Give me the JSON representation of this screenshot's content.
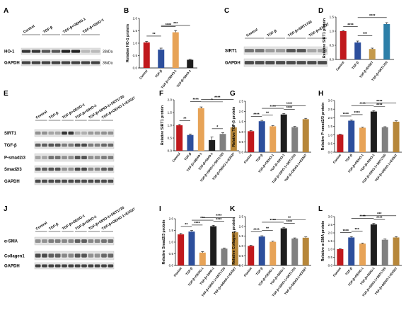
{
  "colors": {
    "Control": "#c0191d",
    "TGF-β": "#2d4f9c",
    "TGF-β+OEHO-1": "#e7a357",
    "TGF-β+SIHO-1": "#1e1e1e",
    "TGF-β+SIHO-1+SRT1720": "#808080",
    "TGF-β+OEHO-1+EX527": "#b7873a",
    "TGF-β+SRT1720": "#2d7fa8",
    "TGF-β+EX527": "#c49a4c"
  },
  "blots": {
    "A": {
      "label": "A",
      "columns": [
        "Control",
        "TGF-β",
        "TGF-β+OEHO-1",
        "TGF-β+SIHO-1"
      ],
      "rows": [
        {
          "name": "HO-1",
          "kda": "33kDa"
        },
        {
          "name": "GAPDH",
          "kda": "36kDa"
        }
      ]
    },
    "C": {
      "label": "C",
      "columns": [
        "Control",
        "TGF-β",
        "TGF-β+SRT1720",
        "TGF-β+EX527"
      ],
      "rows": [
        {
          "name": "SIRT1"
        },
        {
          "name": "GAPDH"
        }
      ]
    },
    "E": {
      "label": "E",
      "columns": [
        "Control",
        "TGF-β",
        "TGF-β+OEHO-1",
        "TGF-β+SIHO-1",
        "TGF-β+SIHO-1+SRT1720",
        "TGF-β+OEHO-1+EX527"
      ],
      "rows": [
        {
          "name": "SIRT1"
        },
        {
          "name": "TGF-β"
        },
        {
          "name": "P-smad2/3"
        },
        {
          "name": "Smad2/3"
        },
        {
          "name": "GAPDH"
        }
      ]
    },
    "J": {
      "label": "J",
      "columns": [
        "Control",
        "TGF-β",
        "TGF-β+OEHO-1",
        "TGF-β+SIHO-1",
        "TGF-β+SIHO-1+SRT1720",
        "TGF-β+OEHO-1+EX527"
      ],
      "rows": [
        {
          "name": "α-SMA"
        },
        {
          "name": "Collagen1"
        },
        {
          "name": "GAPDH"
        }
      ]
    }
  },
  "chart_data": [
    {
      "panel": "B",
      "type": "bar",
      "ylabel": "Relative HO-1 protein",
      "ylim": [
        0,
        2.0
      ],
      "yticks": [
        "0.0",
        "0.5",
        "1.0",
        "1.5",
        "2.0"
      ],
      "categories": [
        "Control",
        "TGF-β",
        "TGF-β+OEHO-1",
        "TGF-β+SIHO-1"
      ],
      "values": [
        1.03,
        0.74,
        1.44,
        0.33
      ],
      "errors": [
        0.04,
        0.06,
        0.07,
        0.02
      ],
      "sig": [
        {
          "from": 1,
          "to": 2,
          "label": "****"
        },
        {
          "from": 0,
          "to": 1,
          "label": "**"
        },
        {
          "from": 1,
          "to": 3,
          "label": "***"
        }
      ]
    },
    {
      "panel": "D",
      "type": "bar",
      "ylabel": "Relative SIRT1 protein",
      "ylim": [
        0,
        1.5
      ],
      "yticks": [
        "0.0",
        "0.5",
        "1.0",
        "1.5"
      ],
      "categories": [
        "Control",
        "TGF-β",
        "TGF-β+EX527",
        "TGF-β+SRT1720"
      ],
      "values": [
        1.0,
        0.6,
        0.37,
        1.25
      ],
      "errors": [
        0.02,
        0.05,
        0.03,
        0.05
      ],
      "sig": [
        {
          "from": 0,
          "to": 1,
          "label": "****"
        },
        {
          "from": 1,
          "to": 2,
          "label": "***"
        },
        {
          "from": 1,
          "to": 3,
          "label": "****"
        }
      ]
    },
    {
      "panel": "F",
      "type": "bar",
      "ylabel": "Relative SIRT1 protein",
      "ylim": [
        0,
        2.0
      ],
      "yticks": [
        "0.0",
        "0.5",
        "1.0",
        "1.5",
        "2.0"
      ],
      "categories": [
        "Control",
        "TGF-β",
        "TGF-β+OEHO-1",
        "TGF-β+SIHO-1",
        "TGF-β+SIHO-1+SRT1720",
        "TGF-β+OEHO-1+EX527"
      ],
      "values": [
        1.0,
        0.62,
        1.67,
        0.42,
        0.66,
        0.92
      ],
      "errors": [
        0.03,
        0.04,
        0.05,
        0.12,
        0.05,
        0.04
      ],
      "sig": [
        {
          "from": 0,
          "to": 1,
          "label": "**"
        },
        {
          "from": 1,
          "to": 2,
          "label": "****"
        },
        {
          "from": 2,
          "to": 4,
          "label": "*"
        },
        {
          "from": 2,
          "to": 5,
          "label": "****"
        },
        {
          "from": 3,
          "to": 4,
          "label": "*"
        }
      ]
    },
    {
      "panel": "G",
      "type": "bar",
      "ylabel": "Relative TGF-β protein",
      "ylim": [
        0,
        2.5
      ],
      "yticks": [
        "0.0",
        "0.5",
        "1.0",
        "1.5",
        "2.0",
        "2.5"
      ],
      "categories": [
        "Control",
        "TGF-β",
        "TGF-β+OEHO-1",
        "TGF-β+SIHO-1",
        "TGF-β+SIHO-1+SRT1720",
        "TGF-β+OEHO-1+EX527"
      ],
      "values": [
        1.03,
        1.52,
        1.27,
        1.85,
        1.23,
        1.62
      ],
      "errors": [
        0.03,
        0.04,
        0.03,
        0.05,
        0.03,
        0.04
      ],
      "sig": [
        {
          "from": 0,
          "to": 1,
          "label": "****"
        },
        {
          "from": 1,
          "to": 2,
          "label": "**"
        },
        {
          "from": 1,
          "to": 3,
          "label": "****"
        },
        {
          "from": 2,
          "to": 5,
          "label": "****"
        },
        {
          "from": 3,
          "to": 4,
          "label": "****"
        }
      ]
    },
    {
      "panel": "H",
      "type": "bar",
      "ylabel": "Relative P-smad2/3 protein",
      "ylim": [
        0,
        3.0
      ],
      "yticks": [
        "0.0",
        "0.5",
        "1.0",
        "1.5",
        "2.0",
        "2.5",
        "3.0"
      ],
      "categories": [
        "Control",
        "TGF-β",
        "TGF-β+OEHO-1",
        "TGF-β+SIHO-1",
        "TGF-β+SIHO-1+SRT1720",
        "TGF-β+OEHO-1+EX527"
      ],
      "values": [
        1.02,
        1.83,
        1.42,
        2.36,
        1.45,
        1.77
      ],
      "errors": [
        0.03,
        0.04,
        0.03,
        0.05,
        0.03,
        0.05
      ],
      "sig": [
        {
          "from": 0,
          "to": 1,
          "label": "****"
        },
        {
          "from": 1,
          "to": 2,
          "label": "****"
        },
        {
          "from": 1,
          "to": 3,
          "label": "****"
        },
        {
          "from": 2,
          "to": 5,
          "label": "****"
        },
        {
          "from": 3,
          "to": 4,
          "label": "****"
        }
      ]
    },
    {
      "panel": "I",
      "type": "bar",
      "ylabel": "Relative Smad2/3 protein",
      "ylim": [
        0,
        2.0
      ],
      "yticks": [
        "0.0",
        "0.5",
        "1.0",
        "1.5",
        "2.0"
      ],
      "categories": [
        "Control",
        "TGF-β",
        "TGF-β+OEHO-1",
        "TGF-β+SIHO-1",
        "TGF-β+SIHO-1+SRT1720",
        "TGF-β+OEHO-1+EX527"
      ],
      "values": [
        1.33,
        1.45,
        0.55,
        1.68,
        0.72,
        1.42
      ],
      "errors": [
        0.04,
        0.05,
        0.04,
        0.04,
        0.03,
        0.04
      ],
      "sig": [
        {
          "from": 0,
          "to": 1,
          "label": "**"
        },
        {
          "from": 1,
          "to": 2,
          "label": "****"
        },
        {
          "from": 1,
          "to": 3,
          "label": "***"
        },
        {
          "from": 2,
          "to": 5,
          "label": "****"
        },
        {
          "from": 3,
          "to": 4,
          "label": "****"
        }
      ]
    },
    {
      "panel": "K",
      "type": "bar",
      "ylabel": "Relative Collagen1 protein",
      "ylim": [
        0,
        2.5
      ],
      "yticks": [
        "0.0",
        "0.5",
        "1.0",
        "1.5",
        "2.0",
        "2.5"
      ],
      "categories": [
        "Control",
        "TGF-β",
        "TGF-β+OEHO-1",
        "TGF-β+SIHO-1",
        "TGF-β+SIHO-1+SRT1720",
        "TGF-β+OEHO-1+EX527"
      ],
      "values": [
        1.0,
        1.48,
        1.21,
        1.9,
        1.38,
        1.42
      ],
      "errors": [
        0.03,
        0.04,
        0.03,
        0.05,
        0.03,
        0.04
      ],
      "sig": [
        {
          "from": 0,
          "to": 1,
          "label": "****"
        },
        {
          "from": 1,
          "to": 2,
          "label": "**"
        },
        {
          "from": 1,
          "to": 3,
          "label": "****"
        },
        {
          "from": 2,
          "to": 5,
          "label": "**"
        },
        {
          "from": 3,
          "to": 4,
          "label": "****"
        }
      ]
    },
    {
      "panel": "L",
      "type": "bar",
      "ylabel": "Relative α-SMA protein",
      "ylim": [
        0,
        3.0
      ],
      "yticks": [
        "0.0",
        "0.5",
        "1.0",
        "1.5",
        "2.0",
        "2.5",
        "3.0"
      ],
      "categories": [
        "Control",
        "TGF-β",
        "TGF-β+OEHO-1",
        "TGF-β+SIHO-1",
        "TGF-β+SIHO-1+SRT1720",
        "TGF-β+OEHO-1+EX527"
      ],
      "values": [
        1.0,
        1.72,
        1.34,
        2.52,
        1.58,
        1.72
      ],
      "errors": [
        0.03,
        0.05,
        0.04,
        0.06,
        0.04,
        0.05
      ],
      "sig": [
        {
          "from": 0,
          "to": 1,
          "label": "****"
        },
        {
          "from": 1,
          "to": 2,
          "label": "***"
        },
        {
          "from": 1,
          "to": 3,
          "label": "****"
        },
        {
          "from": 2,
          "to": 5,
          "label": "***"
        },
        {
          "from": 3,
          "to": 4,
          "label": "****"
        }
      ]
    }
  ]
}
